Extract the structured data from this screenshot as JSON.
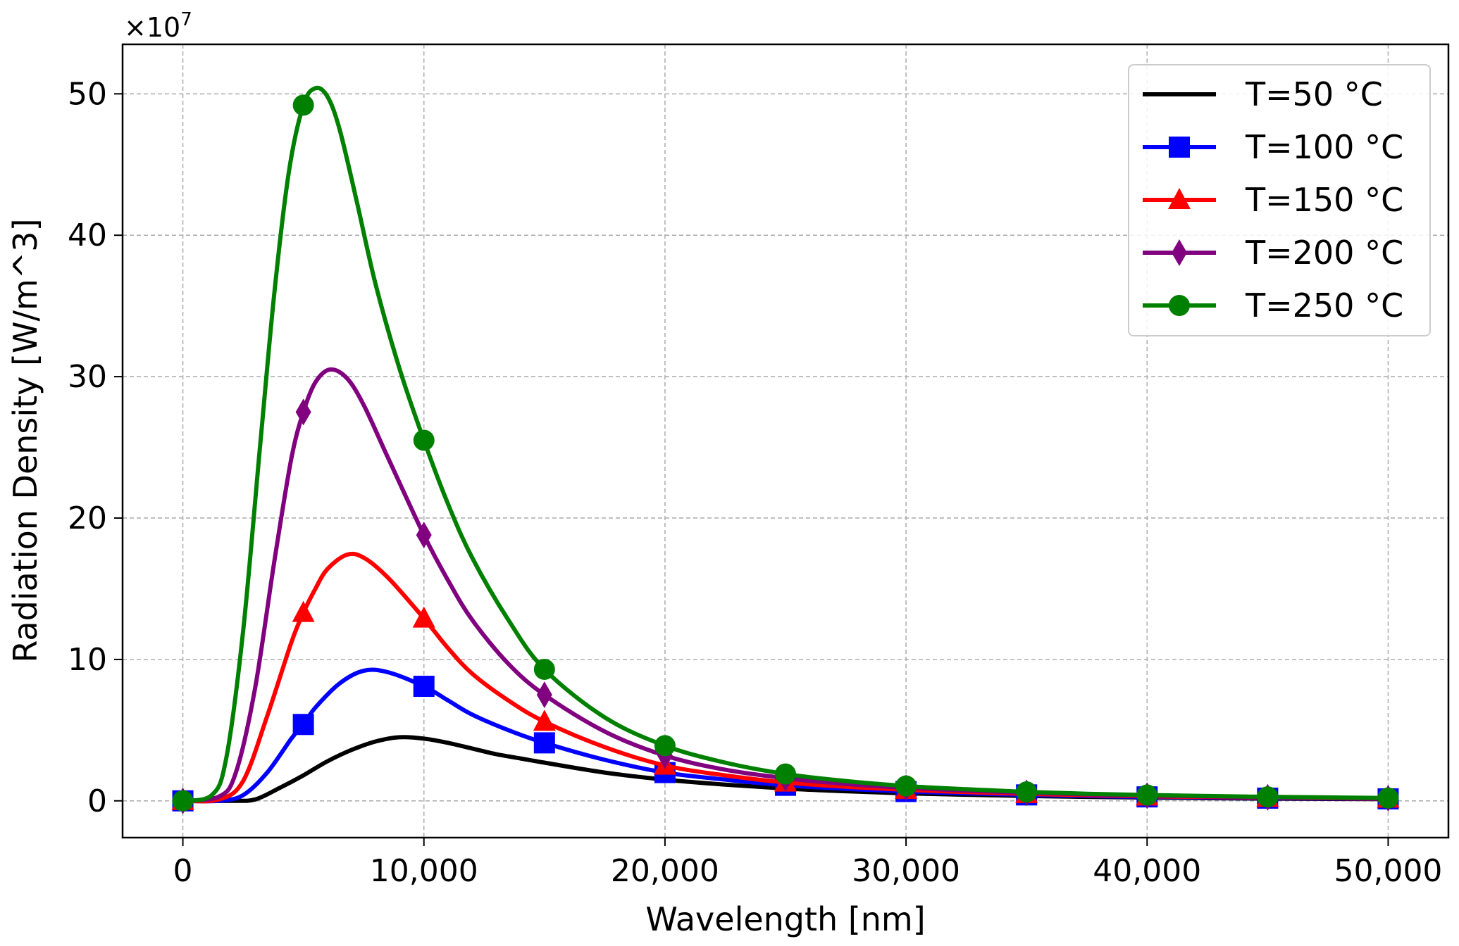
{
  "chart_data": {
    "type": "line",
    "xlabel": "Wavelength [nm]",
    "ylabel": "Radiation Density [W/m^3]",
    "y_multiplier_base": "×10",
    "y_multiplier_exp": "7",
    "y_scale": 10000000,
    "xlim": [
      -2500,
      52500
    ],
    "ylim": [
      -2.6,
      53.5
    ],
    "xticks": [
      0,
      10000,
      20000,
      30000,
      40000,
      50000
    ],
    "xtick_labels": [
      "0",
      "10,000",
      "20,000",
      "30,000",
      "40,000",
      "50,000"
    ],
    "yticks": [
      0,
      10,
      20,
      30,
      40,
      50
    ],
    "ytick_labels": [
      "0",
      "10",
      "20",
      "30",
      "40",
      "50"
    ],
    "grid": true,
    "legend_position": "top-right",
    "x": [
      0,
      5000,
      10000,
      15000,
      20000,
      25000,
      30000,
      35000,
      40000,
      45000,
      50000
    ],
    "series": [
      {
        "name": "T=50 °C",
        "color": "#000000",
        "marker": "none",
        "values": [
          0,
          1.8,
          4.4,
          2.7,
          1.5,
          0.87,
          0.53,
          0.34,
          0.23,
          0.16,
          0.12
        ],
        "curve_x": [
          0,
          2000,
          3000,
          4000,
          5000,
          6000,
          7000,
          8000,
          9000,
          10000,
          11000,
          12000,
          13000,
          14000,
          15000,
          17500,
          20000,
          22500,
          25000,
          27500,
          30000,
          32500,
          35000,
          37500,
          40000,
          42500,
          45000,
          47500,
          50000
        ],
        "curve_y": [
          0,
          0,
          0.1,
          0.9,
          1.8,
          2.8,
          3.6,
          4.2,
          4.5,
          4.4,
          4.1,
          3.7,
          3.3,
          3.0,
          2.7,
          2.0,
          1.5,
          1.15,
          0.87,
          0.68,
          0.53,
          0.43,
          0.34,
          0.28,
          0.23,
          0.19,
          0.16,
          0.14,
          0.12
        ]
      },
      {
        "name": "T=100 °C",
        "color": "#0000ff",
        "marker": "square",
        "values": [
          0,
          5.4,
          8.1,
          4.1,
          2.0,
          1.1,
          0.66,
          0.42,
          0.28,
          0.19,
          0.14
        ],
        "curve_x": [
          0,
          1500,
          2500,
          3500,
          4500,
          5000,
          5500,
          6500,
          7500,
          8500,
          10000,
          11000,
          12000,
          13500,
          15000,
          17500,
          20000,
          22500,
          25000,
          27500,
          30000,
          32500,
          35000,
          37500,
          40000,
          42500,
          45000,
          47500,
          50000
        ],
        "curve_y": [
          0,
          0,
          0.4,
          2.0,
          4.4,
          5.4,
          6.6,
          8.3,
          9.2,
          9.1,
          8.1,
          7.1,
          6.1,
          5.0,
          4.1,
          2.9,
          2.0,
          1.5,
          1.1,
          0.85,
          0.66,
          0.53,
          0.42,
          0.34,
          0.28,
          0.23,
          0.19,
          0.17,
          0.14
        ]
      },
      {
        "name": "T=150 °C",
        "color": "#ff0000",
        "marker": "triangle",
        "values": [
          0,
          13.3,
          12.9,
          5.6,
          2.5,
          1.3,
          0.78,
          0.49,
          0.32,
          0.22,
          0.16
        ],
        "curve_x": [
          0,
          1500,
          2500,
          3500,
          4500,
          5000,
          5500,
          6000,
          6800,
          7500,
          8500,
          10000,
          11000,
          12000,
          13500,
          15000,
          17500,
          20000,
          22500,
          25000,
          27500,
          30000,
          32500,
          35000,
          37500,
          40000,
          42500,
          45000,
          47500,
          50000
        ],
        "curve_y": [
          0,
          0.1,
          1.4,
          6.0,
          11.2,
          13.3,
          15.0,
          16.4,
          17.4,
          17.2,
          15.8,
          12.9,
          10.8,
          9.0,
          7.1,
          5.6,
          3.8,
          2.5,
          1.8,
          1.3,
          1.0,
          0.78,
          0.62,
          0.49,
          0.4,
          0.32,
          0.27,
          0.22,
          0.19,
          0.16
        ]
      },
      {
        "name": "T=200 °C",
        "color": "#800080",
        "marker": "diamond",
        "values": [
          0,
          27.5,
          18.8,
          7.5,
          3.2,
          1.6,
          0.92,
          0.57,
          0.37,
          0.25,
          0.18
        ],
        "curve_x": [
          0,
          1500,
          2200,
          3000,
          3800,
          4500,
          5000,
          5500,
          6100,
          6800,
          7500,
          8500,
          10000,
          11000,
          12000,
          13500,
          15000,
          17500,
          20000,
          22500,
          25000,
          27500,
          30000,
          32500,
          35000,
          37500,
          40000,
          42500,
          45000,
          47500,
          50000
        ],
        "curve_y": [
          0,
          0.3,
          2.0,
          8.0,
          17.0,
          24.2,
          27.5,
          29.6,
          30.5,
          29.9,
          28.0,
          24.3,
          18.8,
          15.6,
          12.8,
          9.7,
          7.5,
          4.9,
          3.2,
          2.2,
          1.6,
          1.2,
          0.92,
          0.72,
          0.57,
          0.46,
          0.37,
          0.31,
          0.25,
          0.21,
          0.18
        ]
      },
      {
        "name": "T=250 °C",
        "color": "#008000",
        "marker": "circle",
        "values": [
          0,
          49.2,
          25.5,
          9.3,
          3.9,
          1.9,
          1.05,
          0.63,
          0.41,
          0.28,
          0.2
        ],
        "curve_x": [
          0,
          1200,
          1800,
          2500,
          3200,
          3800,
          4400,
          5000,
          5500,
          6000,
          6500,
          7200,
          8000,
          9000,
          10000,
          11000,
          12000,
          13500,
          15000,
          17500,
          20000,
          22500,
          25000,
          27500,
          30000,
          32500,
          35000,
          37500,
          40000,
          42500,
          45000,
          47500,
          50000
        ],
        "curve_y": [
          0,
          0.4,
          3.0,
          12.0,
          25.0,
          36.0,
          44.5,
          49.2,
          50.4,
          49.8,
          47.5,
          42.5,
          36.5,
          30.5,
          25.5,
          21.0,
          17.2,
          12.8,
          9.3,
          5.9,
          3.9,
          2.7,
          1.9,
          1.4,
          1.05,
          0.82,
          0.63,
          0.5,
          0.41,
          0.34,
          0.28,
          0.24,
          0.2
        ]
      }
    ]
  }
}
